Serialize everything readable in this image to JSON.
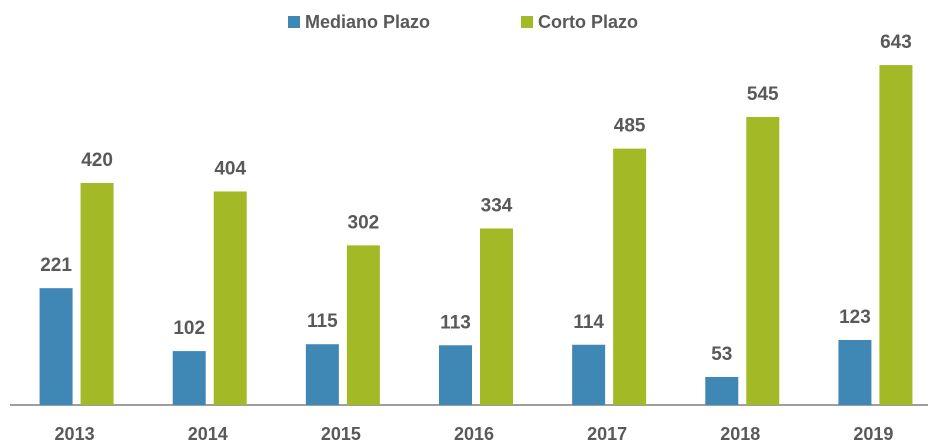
{
  "chart_data": {
    "type": "bar",
    "categories": [
      "2013",
      "2014",
      "2015",
      "2016",
      "2017",
      "2018",
      "2019"
    ],
    "series": [
      {
        "name": "Mediano Plazo",
        "color": "#3f88b5",
        "values": [
          221,
          102,
          115,
          113,
          114,
          53,
          123
        ]
      },
      {
        "name": "Corto Plazo",
        "color": "#a3b925",
        "values": [
          420,
          404,
          302,
          334,
          485,
          545,
          643
        ]
      }
    ],
    "ylim": [
      0,
      700
    ],
    "legend": "top"
  }
}
